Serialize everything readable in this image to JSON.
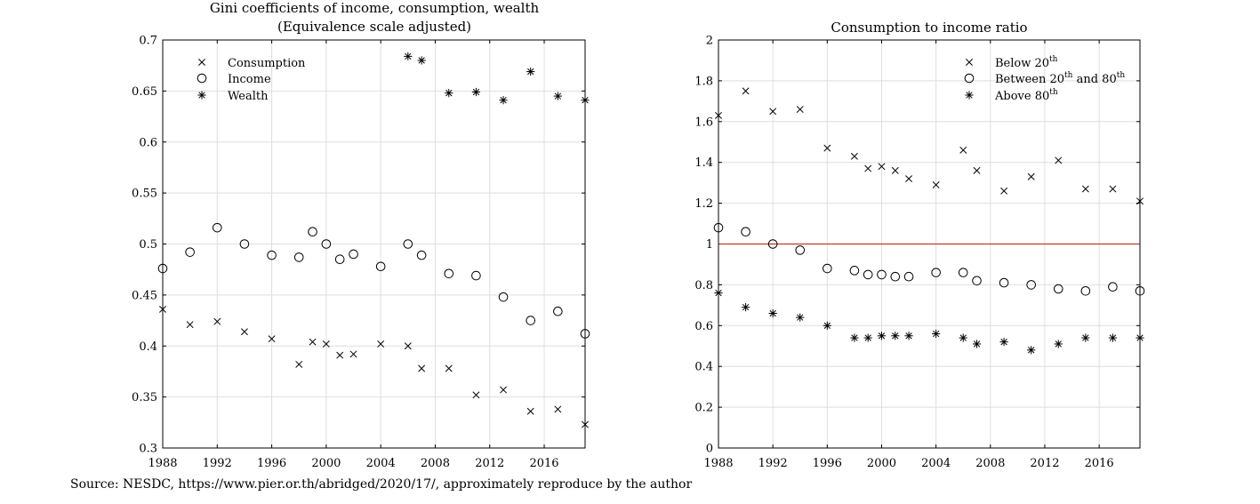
{
  "chart_data": [
    {
      "type": "scatter",
      "title": "Gini coefficients of income, consumption, wealth",
      "subtitle": "(Equivalence scale adjusted)",
      "xlabel": "",
      "ylabel": "",
      "xlim": [
        1988,
        2019
      ],
      "ylim": [
        0.3,
        0.7
      ],
      "xticks": [
        "1988",
        "1992",
        "1996",
        "2000",
        "2004",
        "2008",
        "2012",
        "2016"
      ],
      "yticks": [
        "0.3",
        "0.35",
        "0.4",
        "0.45",
        "0.5",
        "0.55",
        "0.6",
        "0.65",
        "0.7"
      ],
      "grid": true,
      "legend_position": "top-left",
      "series": [
        {
          "name": "Consumption",
          "marker": "x",
          "x": [
            1988,
            1990,
            1992,
            1994,
            1996,
            1998,
            1999,
            2000,
            2001,
            2002,
            2004,
            2006,
            2007,
            2009,
            2011,
            2013,
            2015,
            2017,
            2019
          ],
          "y": [
            0.436,
            0.421,
            0.424,
            0.414,
            0.407,
            0.382,
            0.404,
            0.402,
            0.391,
            0.392,
            0.402,
            0.4,
            0.378,
            0.378,
            0.352,
            0.357,
            0.336,
            0.338,
            0.323
          ]
        },
        {
          "name": "Income",
          "marker": "o",
          "x": [
            1988,
            1990,
            1992,
            1994,
            1996,
            1998,
            1999,
            2000,
            2001,
            2002,
            2004,
            2006,
            2007,
            2009,
            2011,
            2013,
            2015,
            2017,
            2019
          ],
          "y": [
            0.476,
            0.492,
            0.516,
            0.5,
            0.489,
            0.487,
            0.512,
            0.5,
            0.485,
            0.49,
            0.478,
            0.5,
            0.489,
            0.471,
            0.469,
            0.448,
            0.425,
            0.434,
            0.412
          ]
        },
        {
          "name": "Wealth",
          "marker": "*",
          "x": [
            2006,
            2007,
            2009,
            2011,
            2013,
            2015,
            2017,
            2019
          ],
          "y": [
            0.684,
            0.68,
            0.648,
            0.649,
            0.641,
            0.669,
            0.645,
            0.641
          ]
        }
      ]
    },
    {
      "type": "scatter",
      "title": "Consumption to income ratio",
      "xlabel": "",
      "ylabel": "",
      "xlim": [
        1988,
        2019
      ],
      "ylim": [
        0,
        2
      ],
      "xticks": [
        "1988",
        "1992",
        "1996",
        "2000",
        "2004",
        "2008",
        "2012",
        "2016"
      ],
      "yticks": [
        "0",
        "0.2",
        "0.4",
        "0.6",
        "0.8",
        "1",
        "1.2",
        "1.4",
        "1.6",
        "1.8",
        "2"
      ],
      "grid": true,
      "legend_position": "top-right",
      "reference_line": {
        "y": 1,
        "color": "#c0392b"
      },
      "series": [
        {
          "name": "Below 20",
          "name_sup": "th",
          "marker": "x",
          "x": [
            1988,
            1990,
            1992,
            1994,
            1996,
            1998,
            1999,
            2000,
            2001,
            2002,
            2004,
            2006,
            2007,
            2009,
            2011,
            2013,
            2015,
            2017,
            2019
          ],
          "y": [
            1.63,
            1.75,
            1.65,
            1.66,
            1.47,
            1.43,
            1.37,
            1.38,
            1.36,
            1.32,
            1.29,
            1.46,
            1.36,
            1.26,
            1.33,
            1.41,
            1.27,
            1.27,
            1.21
          ]
        },
        {
          "name": "Between 20",
          "name_sup": "th",
          "name_mid": " and 80",
          "name_sup2": "th",
          "marker": "o",
          "x": [
            1988,
            1990,
            1992,
            1994,
            1996,
            1998,
            1999,
            2000,
            2001,
            2002,
            2004,
            2006,
            2007,
            2009,
            2011,
            2013,
            2015,
            2017,
            2019
          ],
          "y": [
            1.08,
            1.06,
            1.0,
            0.97,
            0.88,
            0.87,
            0.85,
            0.85,
            0.84,
            0.84,
            0.86,
            0.86,
            0.82,
            0.81,
            0.8,
            0.78,
            0.77,
            0.79,
            0.77
          ]
        },
        {
          "name": "Above 80",
          "name_sup": "th",
          "marker": "*",
          "x": [
            1988,
            1990,
            1992,
            1994,
            1996,
            1998,
            1999,
            2000,
            2001,
            2002,
            2004,
            2006,
            2007,
            2009,
            2011,
            2013,
            2015,
            2017,
            2019
          ],
          "y": [
            0.76,
            0.69,
            0.66,
            0.64,
            0.6,
            0.54,
            0.54,
            0.55,
            0.55,
            0.55,
            0.56,
            0.54,
            0.51,
            0.52,
            0.48,
            0.51,
            0.54,
            0.54,
            0.54
          ]
        }
      ]
    }
  ],
  "source_note": "Source: NESDC, https://www.pier.or.th/abridged/2020/17/, approximately reproduce by the author"
}
